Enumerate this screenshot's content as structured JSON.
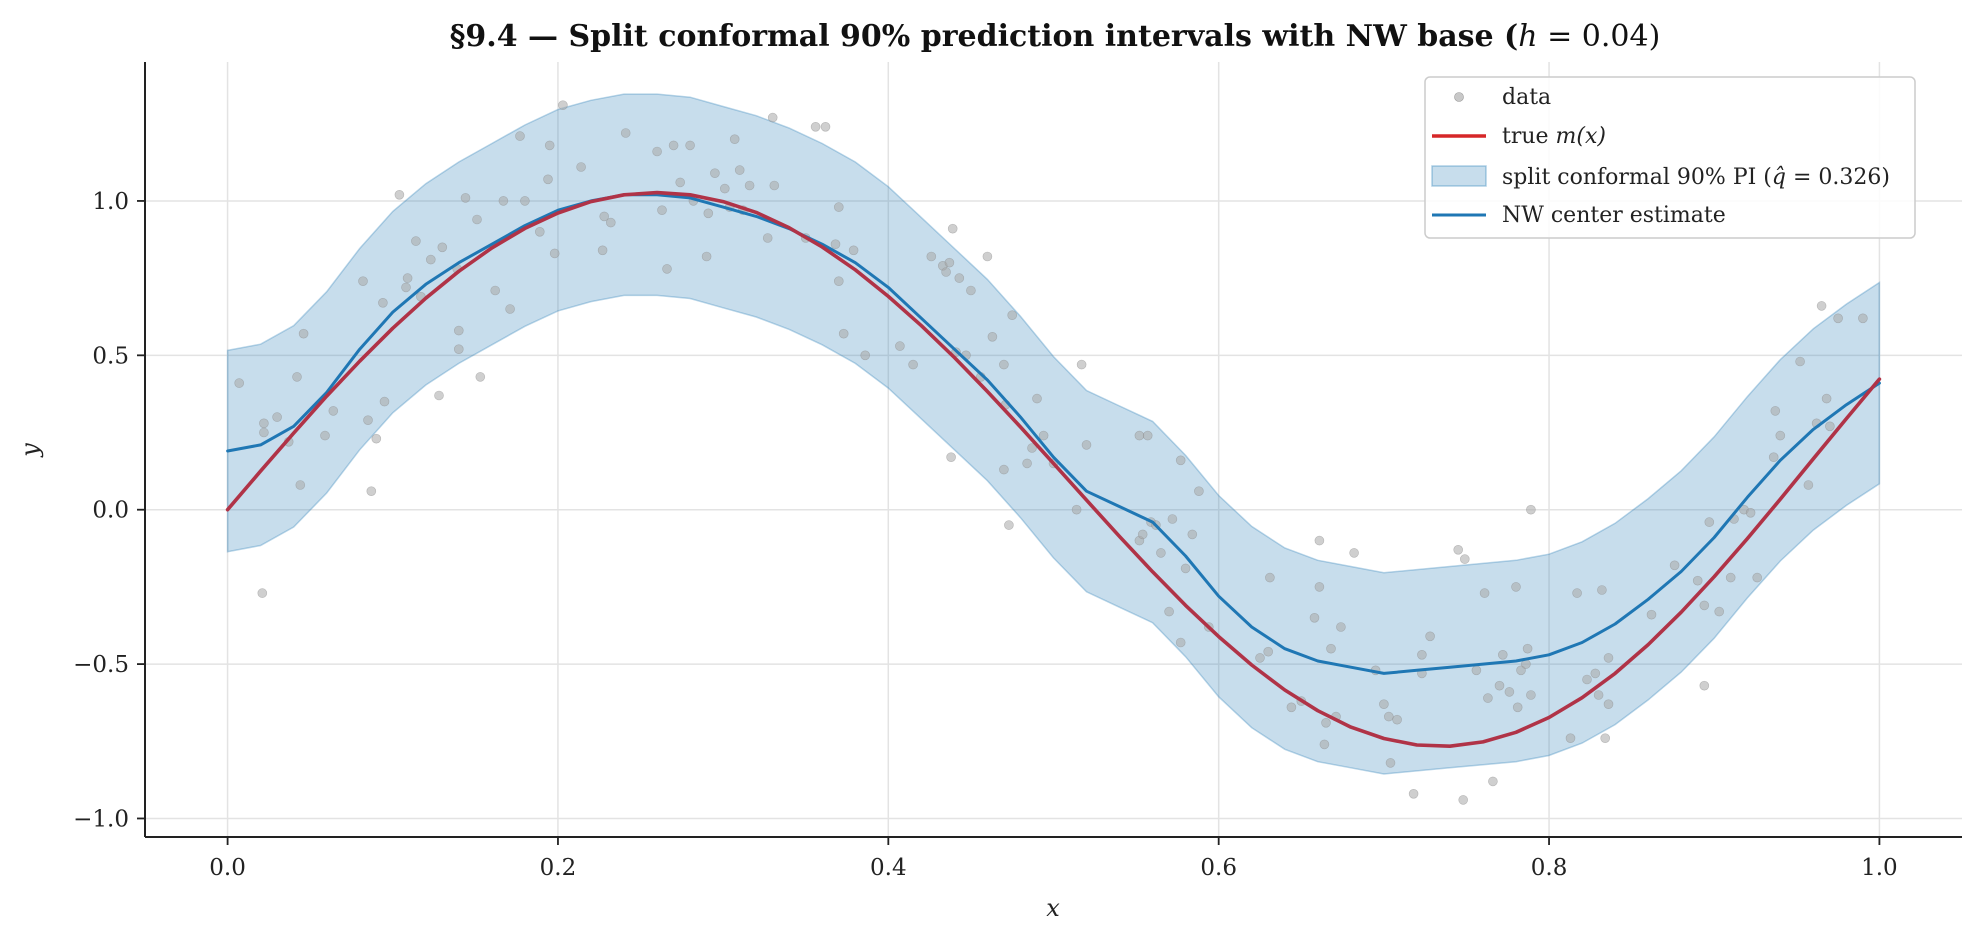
{
  "chart_data": {
    "type": "line",
    "title": "§9.4 — Split conformal 90% prediction intervals with NW base (h = 0.04)",
    "title_parts": {
      "prefix": "§9.4 — Split conformal 90% prediction intervals with NW base (",
      "var": "h",
      "suffix": " = 0.04)"
    },
    "xlabel": "x",
    "ylabel": "y",
    "xlim": [
      -0.05,
      1.05
    ],
    "ylim": [
      -1.06,
      1.45
    ],
    "xticks": [
      0.0,
      0.2,
      0.4,
      0.6,
      0.8,
      1.0
    ],
    "xtick_labels": [
      "0.0",
      "0.2",
      "0.4",
      "0.6",
      "0.8",
      "1.0"
    ],
    "yticks": [
      -1.0,
      -0.5,
      0.0,
      0.5,
      1.0
    ],
    "ytick_labels": [
      "−1.0",
      "−0.5",
      "0.0",
      "0.5",
      "1.0"
    ],
    "grid": true,
    "legend_position": "top-right",
    "legend": [
      {
        "kind": "marker",
        "label": "data",
        "color": "#b0b0b0"
      },
      {
        "kind": "line",
        "label_prefix": "true ",
        "label_math": "m(x)",
        "label_suffix": "",
        "color": "#d62728"
      },
      {
        "kind": "patch",
        "label_prefix": "split conformal 90% PI (",
        "label_math": "q̂",
        "label_suffix": " = 0.326)",
        "color": "#1f77b4"
      },
      {
        "kind": "line",
        "label_prefix": "NW center estimate",
        "label_math": "",
        "label_suffix": "",
        "color": "#1f77b4"
      }
    ],
    "q_hat": 0.326,
    "series": [
      {
        "name": "true m(x)",
        "color": "#b03347",
        "x": [
          0.0,
          0.02,
          0.04,
          0.06,
          0.08,
          0.1,
          0.12,
          0.14,
          0.16,
          0.18,
          0.2,
          0.22,
          0.24,
          0.26,
          0.28,
          0.3,
          0.32,
          0.34,
          0.36,
          0.38,
          0.4,
          0.42,
          0.44,
          0.46,
          0.48,
          0.5,
          0.52,
          0.54,
          0.56,
          0.58,
          0.6,
          0.62,
          0.64,
          0.66,
          0.68,
          0.7,
          0.72,
          0.74,
          0.76,
          0.78,
          0.8,
          0.82,
          0.84,
          0.86,
          0.88,
          0.9,
          0.92,
          0.94,
          0.96,
          0.98,
          1.0
        ],
        "y": [
          0.0,
          0.125,
          0.248,
          0.368,
          0.481,
          0.588,
          0.685,
          0.772,
          0.848,
          0.911,
          0.961,
          0.998,
          1.02,
          1.027,
          1.02,
          0.998,
          0.963,
          0.913,
          0.851,
          0.777,
          0.691,
          0.596,
          0.493,
          0.383,
          0.268,
          0.15,
          0.031,
          -0.087,
          -0.201,
          -0.31,
          -0.411,
          -0.503,
          -0.584,
          -0.651,
          -0.704,
          -0.741,
          -0.762,
          -0.766,
          -0.752,
          -0.721,
          -0.673,
          -0.609,
          -0.53,
          -0.437,
          -0.332,
          -0.217,
          -0.094,
          0.034,
          0.165,
          0.295,
          0.423
        ]
      },
      {
        "name": "NW center estimate",
        "color": "#1f77b4",
        "x": [
          0.0,
          0.02,
          0.04,
          0.06,
          0.08,
          0.1,
          0.12,
          0.14,
          0.16,
          0.18,
          0.2,
          0.22,
          0.24,
          0.26,
          0.28,
          0.3,
          0.32,
          0.34,
          0.36,
          0.38,
          0.4,
          0.42,
          0.44,
          0.46,
          0.48,
          0.5,
          0.52,
          0.54,
          0.56,
          0.58,
          0.6,
          0.62,
          0.64,
          0.66,
          0.68,
          0.7,
          0.72,
          0.74,
          0.76,
          0.78,
          0.8,
          0.82,
          0.84,
          0.86,
          0.88,
          0.9,
          0.92,
          0.94,
          0.96,
          0.98,
          1.0
        ],
        "y": [
          0.19,
          0.21,
          0.27,
          0.38,
          0.52,
          0.64,
          0.73,
          0.8,
          0.86,
          0.92,
          0.97,
          1.0,
          1.02,
          1.02,
          1.01,
          0.98,
          0.95,
          0.91,
          0.86,
          0.8,
          0.72,
          0.62,
          0.52,
          0.42,
          0.3,
          0.17,
          0.06,
          0.01,
          -0.04,
          -0.15,
          -0.28,
          -0.38,
          -0.45,
          -0.49,
          -0.51,
          -0.53,
          -0.52,
          -0.51,
          -0.5,
          -0.49,
          -0.47,
          -0.43,
          -0.37,
          -0.29,
          -0.2,
          -0.09,
          0.04,
          0.16,
          0.26,
          0.34,
          0.41
        ]
      },
      {
        "name": "split conformal 90% PI (q̂ = 0.326)",
        "color": "#1f77b4",
        "kind": "band",
        "x": [
          0.0,
          0.02,
          0.04,
          0.06,
          0.08,
          0.1,
          0.12,
          0.14,
          0.16,
          0.18,
          0.2,
          0.22,
          0.24,
          0.26,
          0.28,
          0.3,
          0.32,
          0.34,
          0.36,
          0.38,
          0.4,
          0.42,
          0.44,
          0.46,
          0.48,
          0.5,
          0.52,
          0.54,
          0.56,
          0.58,
          0.6,
          0.62,
          0.64,
          0.66,
          0.68,
          0.7,
          0.72,
          0.74,
          0.76,
          0.78,
          0.8,
          0.82,
          0.84,
          0.86,
          0.88,
          0.9,
          0.92,
          0.94,
          0.96,
          0.98,
          1.0
        ],
        "lower": [
          -0.136,
          -0.116,
          -0.056,
          0.054,
          0.194,
          0.314,
          0.404,
          0.474,
          0.534,
          0.594,
          0.644,
          0.674,
          0.694,
          0.694,
          0.684,
          0.654,
          0.624,
          0.584,
          0.534,
          0.474,
          0.394,
          0.294,
          0.194,
          0.094,
          -0.026,
          -0.156,
          -0.266,
          -0.316,
          -0.366,
          -0.476,
          -0.606,
          -0.706,
          -0.776,
          -0.816,
          -0.836,
          -0.856,
          -0.846,
          -0.836,
          -0.826,
          -0.816,
          -0.796,
          -0.756,
          -0.696,
          -0.616,
          -0.526,
          -0.416,
          -0.286,
          -0.166,
          -0.066,
          0.014,
          0.084
        ],
        "upper": [
          0.516,
          0.536,
          0.596,
          0.706,
          0.846,
          0.966,
          1.056,
          1.126,
          1.186,
          1.246,
          1.296,
          1.326,
          1.346,
          1.346,
          1.336,
          1.306,
          1.276,
          1.236,
          1.186,
          1.126,
          1.046,
          0.946,
          0.846,
          0.746,
          0.626,
          0.496,
          0.386,
          0.336,
          0.286,
          0.176,
          0.046,
          -0.054,
          -0.124,
          -0.164,
          -0.184,
          -0.204,
          -0.194,
          -0.184,
          -0.174,
          -0.164,
          -0.144,
          -0.104,
          -0.044,
          0.036,
          0.126,
          0.236,
          0.366,
          0.486,
          0.586,
          0.666,
          0.736
        ]
      },
      {
        "name": "data",
        "color": "#a8a8a8",
        "kind": "scatter",
        "points": [
          [
            0.007,
            0.41
          ],
          [
            0.021,
            -0.27
          ],
          [
            0.022,
            0.28
          ],
          [
            0.022,
            0.25
          ],
          [
            0.03,
            0.3
          ],
          [
            0.037,
            0.22
          ],
          [
            0.042,
            0.43
          ],
          [
            0.044,
            0.08
          ],
          [
            0.046,
            0.57
          ],
          [
            0.059,
            0.24
          ],
          [
            0.064,
            0.32
          ],
          [
            0.082,
            0.74
          ],
          [
            0.085,
            0.29
          ],
          [
            0.087,
            0.06
          ],
          [
            0.09,
            0.23
          ],
          [
            0.094,
            0.67
          ],
          [
            0.095,
            0.35
          ],
          [
            0.104,
            1.02
          ],
          [
            0.108,
            0.72
          ],
          [
            0.109,
            0.75
          ],
          [
            0.114,
            0.87
          ],
          [
            0.117,
            0.69
          ],
          [
            0.123,
            0.81
          ],
          [
            0.128,
            0.37
          ],
          [
            0.13,
            0.85
          ],
          [
            0.139,
            0.78
          ],
          [
            0.14,
            0.58
          ],
          [
            0.14,
            0.52
          ],
          [
            0.144,
            1.01
          ],
          [
            0.151,
            0.94
          ],
          [
            0.153,
            0.43
          ],
          [
            0.162,
            0.71
          ],
          [
            0.167,
            1.0
          ],
          [
            0.171,
            0.65
          ],
          [
            0.177,
            1.21
          ],
          [
            0.18,
            1.0
          ],
          [
            0.189,
            0.9
          ],
          [
            0.194,
            1.07
          ],
          [
            0.195,
            1.18
          ],
          [
            0.198,
            0.83
          ],
          [
            0.203,
            1.31
          ],
          [
            0.214,
            1.11
          ],
          [
            0.227,
            0.84
          ],
          [
            0.228,
            0.95
          ],
          [
            0.232,
            0.93
          ],
          [
            0.241,
            1.22
          ],
          [
            0.26,
            1.16
          ],
          [
            0.263,
            0.97
          ],
          [
            0.266,
            0.78
          ],
          [
            0.27,
            1.18
          ],
          [
            0.274,
            1.06
          ],
          [
            0.28,
            1.18
          ],
          [
            0.282,
            1.0
          ],
          [
            0.29,
            0.82
          ],
          [
            0.291,
            0.96
          ],
          [
            0.295,
            1.09
          ],
          [
            0.301,
            1.04
          ],
          [
            0.304,
            0.98
          ],
          [
            0.307,
            1.2
          ],
          [
            0.31,
            1.1
          ],
          [
            0.312,
            0.97
          ],
          [
            0.316,
            1.05
          ],
          [
            0.327,
            0.88
          ],
          [
            0.33,
            1.27
          ],
          [
            0.331,
            1.05
          ],
          [
            0.35,
            0.88
          ],
          [
            0.356,
            1.24
          ],
          [
            0.362,
            1.24
          ],
          [
            0.368,
            0.86
          ],
          [
            0.37,
            0.74
          ],
          [
            0.37,
            0.98
          ],
          [
            0.373,
            0.57
          ],
          [
            0.379,
            0.84
          ],
          [
            0.386,
            0.5
          ],
          [
            0.407,
            0.53
          ],
          [
            0.415,
            0.47
          ],
          [
            0.426,
            0.82
          ],
          [
            0.433,
            0.79
          ],
          [
            0.435,
            0.77
          ],
          [
            0.437,
            0.8
          ],
          [
            0.438,
            0.17
          ],
          [
            0.439,
            0.91
          ],
          [
            0.441,
            0.51
          ],
          [
            0.443,
            0.75
          ],
          [
            0.447,
            0.5
          ],
          [
            0.45,
            0.71
          ],
          [
            0.456,
            0.43
          ],
          [
            0.46,
            0.82
          ],
          [
            0.463,
            0.56
          ],
          [
            0.47,
            0.47
          ],
          [
            0.47,
            0.13
          ],
          [
            0.471,
            0.34
          ],
          [
            0.473,
            -0.05
          ],
          [
            0.475,
            0.63
          ],
          [
            0.484,
            0.15
          ],
          [
            0.487,
            0.2
          ],
          [
            0.49,
            0.36
          ],
          [
            0.494,
            0.24
          ],
          [
            0.5,
            0.15
          ],
          [
            0.514,
            0.0
          ],
          [
            0.517,
            0.47
          ],
          [
            0.52,
            0.21
          ],
          [
            0.552,
            -0.1
          ],
          [
            0.552,
            0.24
          ],
          [
            0.554,
            -0.08
          ],
          [
            0.557,
            0.24
          ],
          [
            0.559,
            -0.04
          ],
          [
            0.562,
            -0.05
          ],
          [
            0.565,
            -0.14
          ],
          [
            0.57,
            -0.33
          ],
          [
            0.572,
            -0.03
          ],
          [
            0.577,
            -0.43
          ],
          [
            0.577,
            0.16
          ],
          [
            0.58,
            -0.19
          ],
          [
            0.584,
            -0.08
          ],
          [
            0.588,
            0.06
          ],
          [
            0.594,
            -0.38
          ],
          [
            0.625,
            -0.48
          ],
          [
            0.63,
            -0.46
          ],
          [
            0.631,
            -0.22
          ],
          [
            0.644,
            -0.64
          ],
          [
            0.65,
            -0.62
          ],
          [
            0.658,
            -0.35
          ],
          [
            0.661,
            -0.1
          ],
          [
            0.661,
            -0.25
          ],
          [
            0.664,
            -0.76
          ],
          [
            0.665,
            -0.69
          ],
          [
            0.668,
            -0.45
          ],
          [
            0.671,
            -0.67
          ],
          [
            0.674,
            -0.38
          ],
          [
            0.682,
            -0.14
          ],
          [
            0.695,
            -0.52
          ],
          [
            0.7,
            -0.63
          ],
          [
            0.703,
            -0.67
          ],
          [
            0.704,
            -0.82
          ],
          [
            0.708,
            -0.68
          ],
          [
            0.718,
            -0.92
          ],
          [
            0.723,
            -0.53
          ],
          [
            0.723,
            -0.47
          ],
          [
            0.728,
            -0.41
          ],
          [
            0.745,
            -0.13
          ],
          [
            0.748,
            -0.94
          ],
          [
            0.749,
            -0.16
          ],
          [
            0.756,
            -0.52
          ],
          [
            0.761,
            -0.27
          ],
          [
            0.763,
            -0.61
          ],
          [
            0.766,
            -0.88
          ],
          [
            0.77,
            -0.57
          ],
          [
            0.772,
            -0.47
          ],
          [
            0.776,
            -0.59
          ],
          [
            0.78,
            -0.25
          ],
          [
            0.781,
            -0.64
          ],
          [
            0.783,
            -0.52
          ],
          [
            0.786,
            -0.5
          ],
          [
            0.787,
            -0.45
          ],
          [
            0.789,
            -0.6
          ],
          [
            0.789,
            0.0
          ],
          [
            0.813,
            -0.74
          ],
          [
            0.817,
            -0.27
          ],
          [
            0.823,
            -0.55
          ],
          [
            0.828,
            -0.53
          ],
          [
            0.83,
            -0.6
          ],
          [
            0.832,
            -0.26
          ],
          [
            0.834,
            -0.74
          ],
          [
            0.836,
            -0.48
          ],
          [
            0.836,
            -0.63
          ],
          [
            0.862,
            -0.34
          ],
          [
            0.876,
            -0.18
          ],
          [
            0.89,
            -0.23
          ],
          [
            0.894,
            -0.57
          ],
          [
            0.894,
            -0.31
          ],
          [
            0.897,
            -0.04
          ],
          [
            0.903,
            -0.33
          ],
          [
            0.91,
            -0.22
          ],
          [
            0.912,
            -0.03
          ],
          [
            0.918,
            0.0
          ],
          [
            0.922,
            -0.01
          ],
          [
            0.926,
            -0.22
          ],
          [
            0.936,
            0.17
          ],
          [
            0.937,
            0.32
          ],
          [
            0.94,
            0.24
          ],
          [
            0.952,
            0.48
          ],
          [
            0.957,
            0.08
          ],
          [
            0.962,
            0.28
          ],
          [
            0.965,
            0.66
          ],
          [
            0.968,
            0.36
          ],
          [
            0.97,
            0.27
          ],
          [
            0.975,
            0.62
          ],
          [
            0.99,
            0.62
          ]
        ]
      }
    ]
  }
}
